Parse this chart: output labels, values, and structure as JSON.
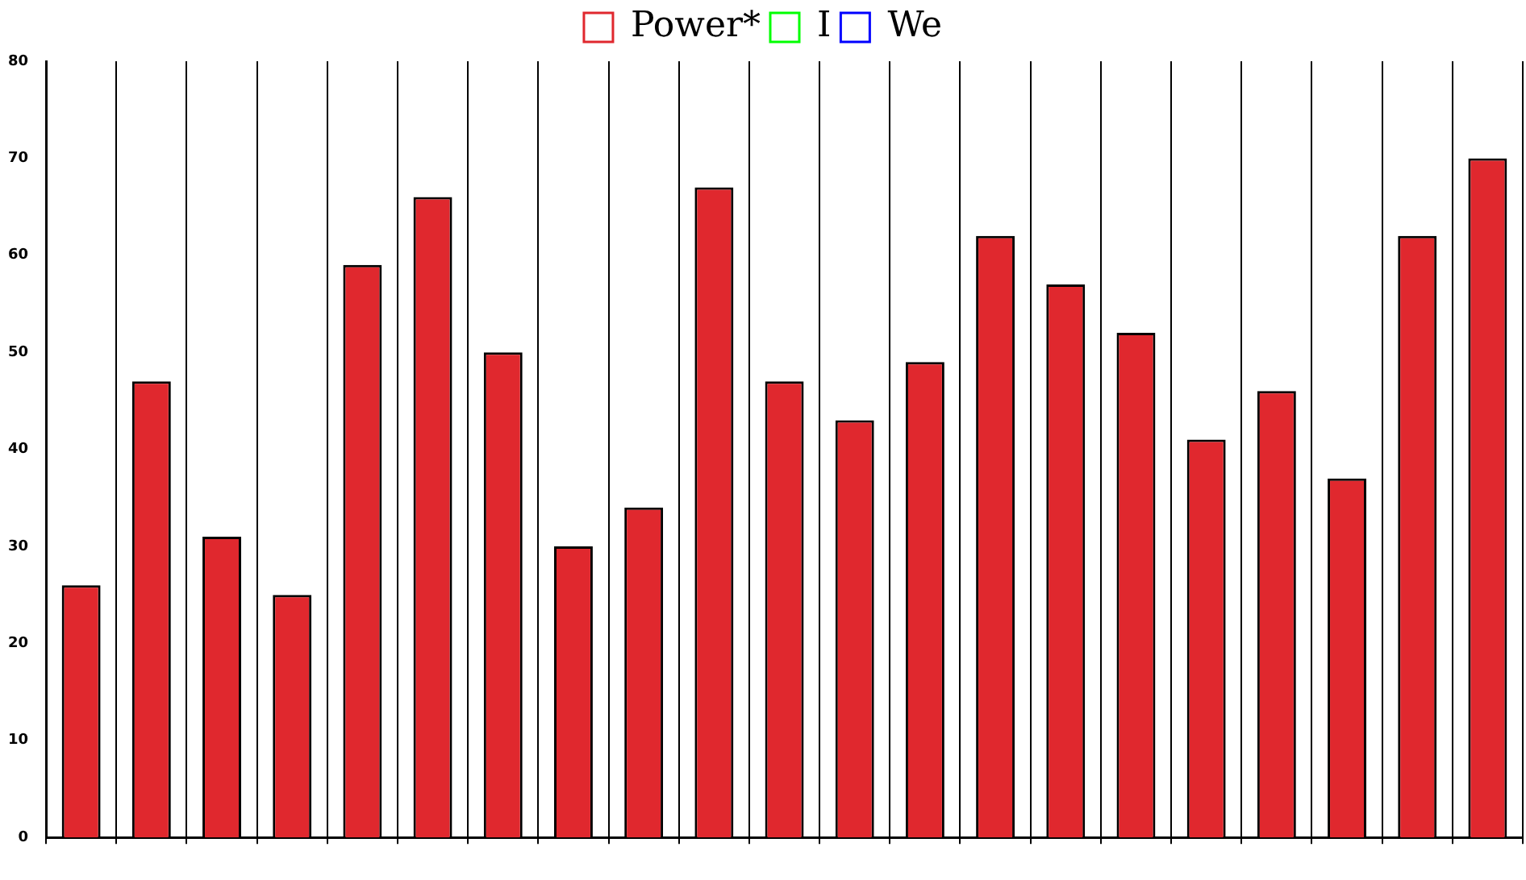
{
  "chart_data": {
    "type": "bar",
    "categories": [
      null,
      null,
      null,
      null,
      null,
      null,
      null,
      null,
      null,
      null,
      null,
      null,
      null,
      null,
      null,
      null,
      null,
      null,
      null,
      null,
      null
    ],
    "series": [
      {
        "name": "Power*",
        "color": "#e0282e",
        "values": [
          26,
          47,
          31,
          25,
          59,
          66,
          50,
          30,
          34,
          67,
          47,
          43,
          49,
          62,
          57,
          52,
          41,
          46,
          37,
          62,
          70
        ]
      },
      {
        "name": "I",
        "color": "#00ff00",
        "values": [
          null,
          null,
          null,
          null,
          null,
          null,
          null,
          null,
          null,
          null,
          null,
          null,
          null,
          null,
          null,
          null,
          null,
          null,
          null,
          null,
          null
        ]
      },
      {
        "name": "We",
        "color": "#0000ff",
        "values": [
          null,
          null,
          null,
          null,
          null,
          null,
          null,
          null,
          null,
          null,
          null,
          null,
          null,
          null,
          null,
          null,
          null,
          null,
          null,
          null,
          null
        ]
      }
    ],
    "ylim": [
      0,
      80
    ],
    "yticks": [
      0,
      10,
      20,
      30,
      40,
      50,
      60,
      70,
      80
    ],
    "grid": "x",
    "legend": "top"
  }
}
